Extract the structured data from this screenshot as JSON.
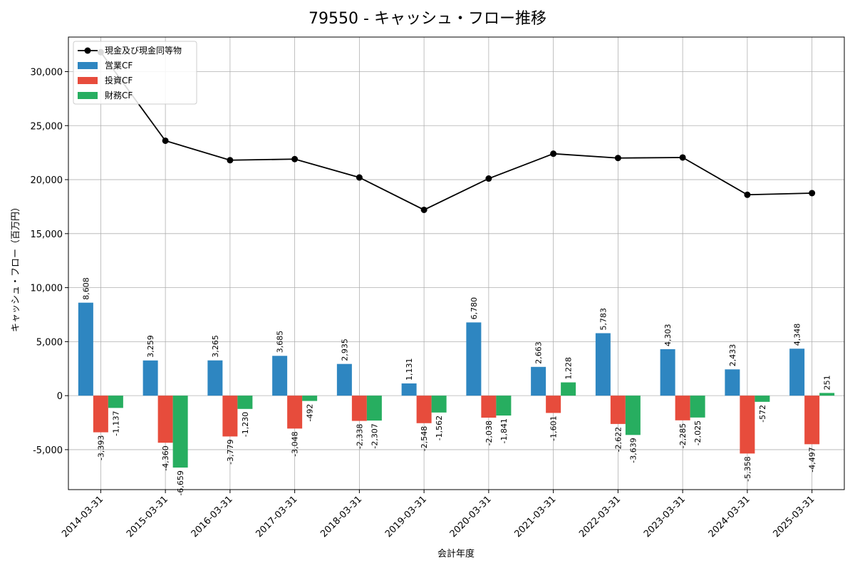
{
  "chart_data": {
    "type": "bar",
    "title": "79550 - キャッシュ・フロー推移",
    "xlabel": "会計年度",
    "ylabel": "キャッシュ・フロー（百万円）",
    "ylim": [
      -8700,
      33200
    ],
    "yticks": [
      -5000,
      0,
      5000,
      10000,
      15000,
      20000,
      25000,
      30000
    ],
    "ytick_labels": [
      "-5,000",
      "0",
      "5,000",
      "10,000",
      "15,000",
      "20,000",
      "25,000",
      "30,000"
    ],
    "grid": true,
    "legend_position": "top-left",
    "categories": [
      "2014-03-31",
      "2015-03-31",
      "2016-03-31",
      "2017-03-31",
      "2018-03-31",
      "2019-03-31",
      "2020-03-31",
      "2021-03-31",
      "2022-03-31",
      "2023-03-31",
      "2024-03-31",
      "2025-03-31"
    ],
    "line_series": {
      "name": "現金及び現金同等物",
      "color": "#000000",
      "values": [
        31800,
        23600,
        21800,
        21900,
        20200,
        17200,
        20100,
        22400,
        22000,
        22050,
        18600,
        18750
      ]
    },
    "series": [
      {
        "name": "営業CF",
        "color": "#2e86c1",
        "values": [
          8608,
          3259,
          3265,
          3685,
          2935,
          1131,
          6780,
          2663,
          5783,
          4303,
          2433,
          4348
        ],
        "labels": [
          "8,608",
          "3,259",
          "3,265",
          "3,685",
          "2,935",
          "1,131",
          "6,780",
          "2,663",
          "5,783",
          "4,303",
          "2,433",
          "4,348"
        ]
      },
      {
        "name": "投資CF",
        "color": "#e74c3c",
        "values": [
          -3393,
          -4360,
          -3779,
          -3048,
          -2338,
          -2548,
          -2038,
          -1601,
          -2622,
          -2285,
          -5358,
          -4497
        ],
        "labels": [
          "-3,393",
          "-4,360",
          "-3,779",
          "-3,048",
          "-2,338",
          "-2,548",
          "-2,038",
          "-1,601",
          "-2,622",
          "-2,285",
          "-5,358",
          "-4,497"
        ]
      },
      {
        "name": "財務CF",
        "color": "#27ae60",
        "values": [
          -1137,
          -6659,
          -1230,
          -492,
          -2307,
          -1562,
          -1841,
          1228,
          -3639,
          -2025,
          -572,
          251
        ],
        "labels": [
          "-1,137",
          "-6,659",
          "-1,230",
          "-492",
          "-2,307",
          "-1,562",
          "-1,841",
          "1,228",
          "-3,639",
          "-2,025",
          "-572",
          "251"
        ]
      }
    ]
  }
}
